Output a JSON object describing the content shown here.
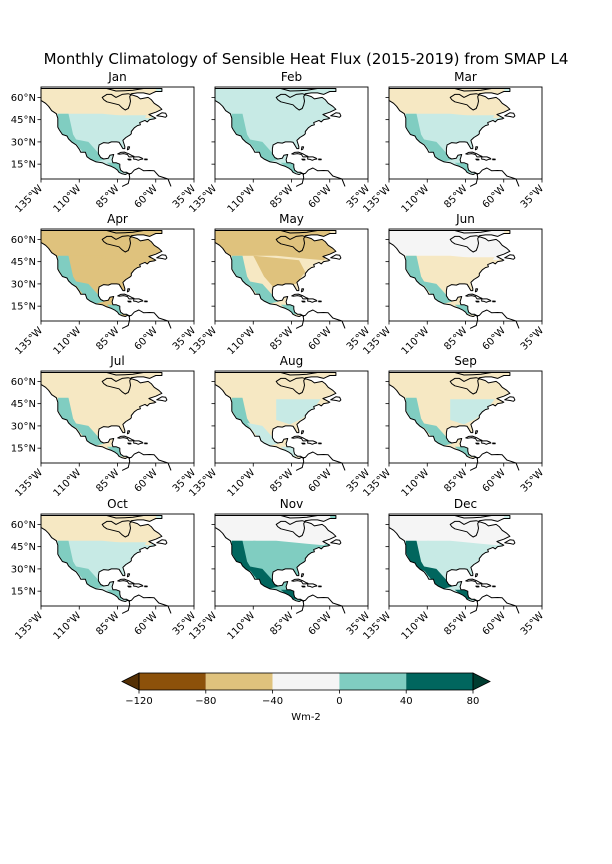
{
  "figure": {
    "title": "Monthly Climatology of Sensible Heat Flux (2015-2019) from SMAP L4"
  },
  "axes": {
    "xticks": [
      "135°W",
      "110°W",
      "85°W",
      "60°W",
      "35°W"
    ],
    "yticks": [
      "60°N",
      "45°N",
      "30°N",
      "15°N"
    ]
  },
  "panels": [
    {
      "month": "Jan",
      "dominant": "light-teal",
      "south": "teal",
      "north": "light-tan"
    },
    {
      "month": "Feb",
      "dominant": "light-teal",
      "south": "teal",
      "north": "light-teal"
    },
    {
      "month": "Mar",
      "dominant": "light-teal",
      "south": "teal",
      "north": "light-tan"
    },
    {
      "month": "Apr",
      "dominant": "tan",
      "south": "teal",
      "north": "tan"
    },
    {
      "month": "May",
      "dominant": "light-tan",
      "south": "teal",
      "north": "tan"
    },
    {
      "month": "Jun",
      "dominant": "light-tan",
      "south": "teal",
      "north": "white"
    },
    {
      "month": "Jul",
      "dominant": "light-tan",
      "south": "teal",
      "north": "light-tan"
    },
    {
      "month": "Aug",
      "dominant": "light-tan",
      "south": "light-teal",
      "north": "light-tan"
    },
    {
      "month": "Sep",
      "dominant": "light-tan",
      "south": "teal",
      "north": "light-tan"
    },
    {
      "month": "Oct",
      "dominant": "light-teal",
      "south": "teal",
      "north": "light-tan"
    },
    {
      "month": "Nov",
      "dominant": "teal",
      "south": "dark-teal",
      "north": "white"
    },
    {
      "month": "Dec",
      "dominant": "light-teal",
      "south": "dark-teal",
      "north": "white"
    }
  ],
  "colorbar": {
    "label": "Wm-2",
    "ticks": [
      "−120",
      "−80",
      "−40",
      "0",
      "40",
      "80"
    ],
    "bins": [
      {
        "range": [
          -120,
          -80
        ],
        "color": "#8c510a"
      },
      {
        "range": [
          -80,
          -40
        ],
        "color": "#dfc27d"
      },
      {
        "range": [
          -40,
          0
        ],
        "color": "#f5f5f5"
      },
      {
        "range": [
          0,
          40
        ],
        "color": "#80cdc1"
      },
      {
        "range": [
          40,
          80
        ],
        "color": "#01665e"
      }
    ],
    "under_color": "#543005",
    "over_color": "#003c30"
  },
  "palette": {
    "tan": "#dfc27d",
    "light-tan": "#f6e8c3",
    "white": "#f5f5f5",
    "light-teal": "#c7eae5",
    "teal": "#80cdc1",
    "dark-teal": "#01665e",
    "brown": "#bf812d"
  }
}
